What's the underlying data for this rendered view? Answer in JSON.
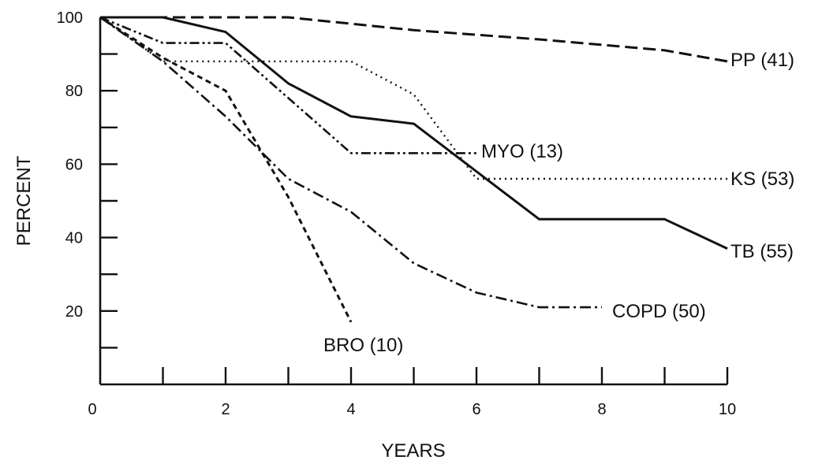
{
  "chart_data": {
    "type": "line",
    "xlabel": "YEARS",
    "ylabel": "PERCENT",
    "xlim": [
      0,
      10
    ],
    "ylim": [
      0,
      100
    ],
    "x_ticks": [
      0,
      2,
      4,
      6,
      8,
      10
    ],
    "x_minor_ticks": [
      1,
      3,
      5,
      7,
      9
    ],
    "y_ticks": [
      20,
      40,
      60,
      80,
      100
    ],
    "y_minor_ticks": [
      10,
      30,
      50,
      70,
      90
    ],
    "grid": false,
    "legend": "none",
    "series": [
      {
        "name": "PP (41)",
        "style": "long-dash",
        "x": [
          0,
          1,
          3,
          5,
          7,
          9,
          10
        ],
        "y": [
          100,
          100,
          100,
          96.5,
          94,
          91,
          88
        ]
      },
      {
        "name": "TB (55)",
        "style": "solid",
        "x": [
          0,
          1,
          2,
          3,
          4,
          5,
          7,
          8,
          9,
          10
        ],
        "y": [
          100,
          100,
          96,
          82,
          73,
          71,
          45,
          45,
          45,
          37
        ]
      },
      {
        "name": "KS (53)",
        "style": "dotted",
        "x": [
          0,
          1,
          4,
          5,
          6,
          10
        ],
        "y": [
          100,
          88,
          88,
          79,
          56,
          56
        ]
      },
      {
        "name": "MYO (13)",
        "style": "dash-dot-dot",
        "x": [
          0,
          1,
          2,
          4,
          6
        ],
        "y": [
          100,
          93,
          93,
          63,
          63
        ]
      },
      {
        "name": "COPD (50)",
        "style": "dash-dot",
        "x": [
          0,
          1,
          2,
          3,
          4,
          5,
          6,
          7,
          8
        ],
        "y": [
          100,
          88,
          73,
          56,
          47,
          33,
          25,
          21,
          21
        ]
      },
      {
        "name": "BRO (10)",
        "style": "short-dash",
        "x": [
          0,
          1,
          2,
          3,
          4
        ],
        "y": [
          100,
          89,
          80,
          51,
          17
        ]
      }
    ]
  }
}
